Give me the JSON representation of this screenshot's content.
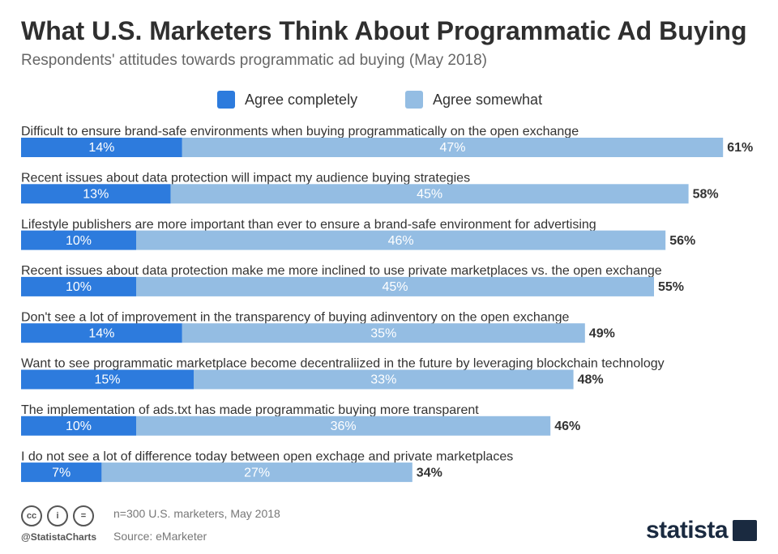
{
  "title": "What U.S. Marketers Think About Programmatic Ad Buying",
  "subtitle": "Respondents' attitudes towards programmatic ad buying (May 2018)",
  "colors": {
    "agree_completely": "#2d7bdd",
    "agree_somewhat": "#94bde3",
    "title": "#2f2f2f",
    "text": "#333333"
  },
  "chart_data": {
    "type": "bar",
    "orientation": "horizontal",
    "stacked": true,
    "categories": [
      "Difficult to ensure brand-safe environments when buying programmatically on the open exchange",
      "Recent issues about data protection will impact my audience buying strategies",
      "Lifestyle publishers are more important than ever to ensure a brand-safe environment for advertising",
      "Recent issues about data protection make me more inclined to use private marketplaces vs. the open exchange",
      "Don't see a lot of improvement in the transparency of buying adinventory on the open exchange",
      "Want to see programmatic marketplace become decentraliized in the future by leveraging blockchain technology",
      "The implementation of ads.txt has made programmatic buying more transparent",
      "I do not see a lot of difference today between open exchage and private marketplaces"
    ],
    "series": [
      {
        "name": "Agree completely",
        "values": [
          14,
          13,
          10,
          10,
          14,
          15,
          10,
          7
        ]
      },
      {
        "name": "Agree somewhat",
        "values": [
          47,
          45,
          46,
          45,
          35,
          33,
          36,
          27
        ]
      }
    ],
    "totals": [
      61,
      58,
      56,
      55,
      49,
      48,
      46,
      34
    ],
    "value_suffix": "%",
    "legend_position": "top",
    "grid": false
  },
  "footer": {
    "note": "n=300 U.S. marketers, May 2018",
    "source": "Source: eMarketer",
    "handle": "@StatistaCharts",
    "brand": "statista",
    "cc_icons": [
      "cc",
      "i",
      "="
    ]
  }
}
